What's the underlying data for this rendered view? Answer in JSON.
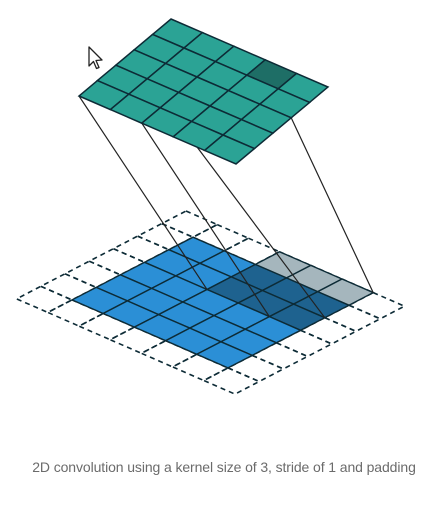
{
  "caption": "2D convolution using a kernel size of 3, stride of 1 and padding",
  "colors": {
    "output_fill": "#2ba395",
    "output_highlight": "#1e6e66",
    "input_fill": "#2b8fd6",
    "input_highlight": "#1e628f",
    "kernel_fill_over_padding": "#a5b6bd",
    "grid_line": "#0d2b36"
  },
  "diagram": {
    "output_grid_size": 5,
    "input_grid_size": 5,
    "padding": 1,
    "kernel_size": 3,
    "stride": 1,
    "highlighted_output_cell": [
      0,
      3
    ],
    "kernel_position": [
      0,
      3
    ]
  },
  "icons": [
    "mouse-cursor-icon"
  ]
}
